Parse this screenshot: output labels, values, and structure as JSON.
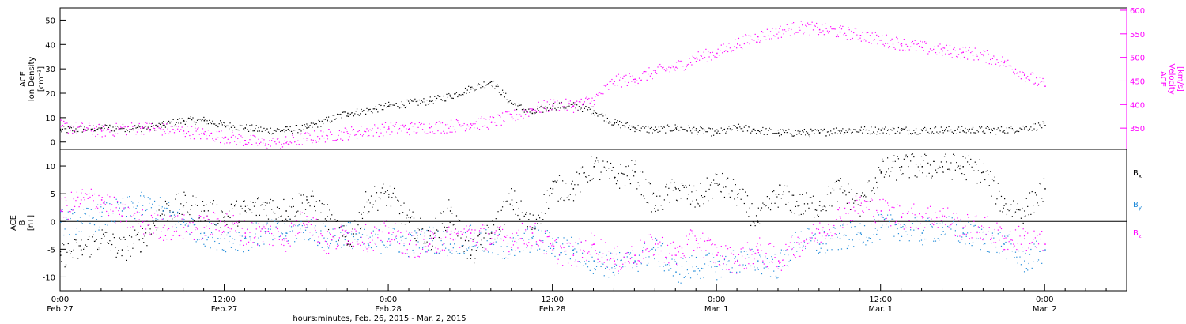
{
  "colors": {
    "black": "#000000",
    "magenta": "#ff00ff",
    "blue": "#1f8ad9",
    "axis": "#000000"
  },
  "chart_data": [
    {
      "type": "scatter",
      "panel": "top",
      "left_axis": {
        "label_lines": [
          "ACE",
          "Ion Density",
          "[cm⁻³]"
        ],
        "ylim": [
          -3,
          55
        ],
        "ticks": [
          "0",
          "10",
          "20",
          "30",
          "40",
          "50"
        ]
      },
      "right_axis": {
        "label_lines": [
          "ACE",
          "Velocity",
          "[km/s]"
        ],
        "ylim": [
          305,
          605
        ],
        "ticks": [
          "350",
          "400",
          "450",
          "500",
          "550",
          "600"
        ],
        "color": "#ff00ff"
      },
      "series": [
        {
          "color": "#000000",
          "axis": "left",
          "x": [
            0,
            4,
            8,
            10,
            12,
            14,
            16,
            18,
            20,
            22,
            24,
            26,
            28,
            30,
            32,
            34,
            36,
            38,
            40,
            42,
            44,
            46,
            48,
            50,
            52,
            54,
            56,
            58,
            60,
            62,
            64,
            66,
            68,
            70,
            72,
            74,
            76,
            78,
            80,
            82,
            84,
            86,
            88,
            90,
            92,
            94,
            96
          ],
          "y": [
            5,
            6,
            6,
            7,
            9,
            9,
            7,
            6,
            5,
            5,
            6,
            9,
            12,
            13,
            15,
            16,
            17,
            19,
            22,
            25,
            16,
            12,
            15,
            15,
            13,
            8,
            6,
            5,
            6,
            5,
            4,
            6,
            5,
            4,
            4,
            4,
            5,
            5,
            5,
            5,
            5,
            5,
            5,
            5,
            5,
            6,
            7
          ]
        },
        {
          "color": "#ff00ff",
          "axis": "right",
          "x": [
            0,
            4,
            8,
            10,
            12,
            14,
            16,
            18,
            20,
            22,
            24,
            26,
            28,
            30,
            32,
            34,
            36,
            38,
            40,
            42,
            44,
            46,
            48,
            50,
            52,
            54,
            56,
            58,
            60,
            62,
            64,
            66,
            68,
            70,
            72,
            74,
            76,
            78,
            80,
            82,
            84,
            86,
            88,
            90,
            92,
            94,
            96
          ],
          "y": [
            355,
            345,
            352,
            348,
            345,
            338,
            332,
            325,
            318,
            320,
            330,
            335,
            340,
            345,
            350,
            350,
            352,
            355,
            360,
            363,
            375,
            390,
            400,
            398,
            410,
            450,
            455,
            470,
            480,
            500,
            510,
            530,
            545,
            555,
            565,
            560,
            555,
            548,
            538,
            530,
            522,
            515,
            512,
            505,
            490,
            465,
            440
          ]
        }
      ],
      "xlim": [
        0,
        104
      ]
    },
    {
      "type": "scatter",
      "panel": "bottom",
      "left_axis": {
        "label_lines": [
          "ACE",
          "B",
          "[nT]"
        ],
        "ylim": [
          -12.5,
          13
        ],
        "ticks": [
          "-10",
          "-5",
          "0",
          "5",
          "10"
        ]
      },
      "legend": [
        {
          "label": "B",
          "sub": "x",
          "color": "#000000"
        },
        {
          "label": "B",
          "sub": "y",
          "color": "#1f8ad9"
        },
        {
          "label": "B",
          "sub": "z",
          "color": "#ff00ff"
        }
      ],
      "series": [
        {
          "name": "Bx",
          "color": "#000000",
          "x": [
            0,
            2,
            4,
            6,
            8,
            10,
            12,
            14,
            16,
            18,
            20,
            22,
            24,
            26,
            28,
            30,
            32,
            34,
            36,
            38,
            40,
            42,
            44,
            46,
            48,
            50,
            52,
            54,
            56,
            58,
            60,
            62,
            64,
            66,
            68,
            70,
            72,
            74,
            76,
            78,
            80,
            82,
            84,
            86,
            88,
            90,
            92,
            94,
            96
          ],
          "y": [
            -6,
            -5,
            -3,
            -5,
            -3,
            2,
            3,
            2,
            1,
            2,
            3,
            2,
            4,
            1,
            -4,
            4,
            5,
            0,
            -3,
            2,
            -6,
            -2,
            4,
            -1,
            6,
            6,
            10,
            8,
            9,
            3,
            6,
            4,
            7,
            5,
            0,
            5,
            3,
            3,
            6,
            3,
            9,
            10,
            10,
            10,
            10,
            9,
            3,
            2,
            6
          ]
        },
        {
          "name": "By",
          "color": "#1f8ad9",
          "x": [
            0,
            2,
            4,
            6,
            8,
            10,
            12,
            14,
            16,
            18,
            20,
            22,
            24,
            26,
            28,
            30,
            32,
            34,
            36,
            38,
            40,
            42,
            44,
            46,
            48,
            50,
            52,
            54,
            56,
            58,
            60,
            62,
            64,
            66,
            68,
            70,
            72,
            74,
            76,
            78,
            80,
            82,
            84,
            86,
            88,
            90,
            92,
            94,
            96
          ],
          "y": [
            0,
            0,
            1,
            2,
            3,
            2,
            0,
            -2,
            -3,
            -3,
            -2,
            -2,
            -1,
            -3,
            -2,
            -4,
            -3,
            -4,
            -3,
            -4,
            -3,
            -4,
            -5,
            -3,
            -4,
            -5,
            -7,
            -8,
            -7,
            -5,
            -9,
            -8,
            -8,
            -7,
            -7,
            -8,
            -3,
            -4,
            -3,
            -2,
            -1,
            -1,
            -2,
            -1,
            -2,
            -3,
            -4,
            -7,
            -5
          ]
        },
        {
          "name": "Bz",
          "color": "#ff00ff",
          "x": [
            0,
            2,
            4,
            6,
            8,
            10,
            12,
            14,
            16,
            18,
            20,
            22,
            24,
            26,
            28,
            30,
            32,
            34,
            36,
            38,
            40,
            42,
            44,
            46,
            48,
            50,
            52,
            54,
            56,
            58,
            60,
            62,
            64,
            66,
            68,
            70,
            72,
            74,
            76,
            78,
            80,
            82,
            84,
            86,
            88,
            90,
            92,
            94,
            96
          ],
          "y": [
            2,
            4,
            4,
            1,
            0,
            -1,
            -1,
            -1,
            0,
            -2,
            -2,
            -3,
            1,
            -4,
            -2,
            -3,
            -2,
            -4,
            -4,
            -3,
            -2,
            -3,
            -3,
            -2,
            -5,
            -6,
            -4,
            -7,
            -6,
            -4,
            -6,
            -3,
            -6,
            -7,
            -5,
            -7,
            -4,
            -2,
            1,
            3,
            2,
            1,
            1,
            1,
            -1,
            -1,
            -3,
            -3,
            -4
          ]
        }
      ],
      "xlim": [
        0,
        104
      ]
    }
  ],
  "x_axis": {
    "ticks": [
      {
        "time": "0:00",
        "date": "Feb.27"
      },
      {
        "time": "12:00",
        "date": "Feb.27"
      },
      {
        "time": "0:00",
        "date": "Feb.28"
      },
      {
        "time": "12:00",
        "date": "Feb.28"
      },
      {
        "time": "0:00",
        "date": "Mar. 1"
      },
      {
        "time": "12:00",
        "date": "Mar. 1"
      },
      {
        "time": "0:00",
        "date": "Mar. 2"
      }
    ],
    "label": "hours:minutes, Feb. 26, 2015 - Mar. 2, 2015"
  }
}
